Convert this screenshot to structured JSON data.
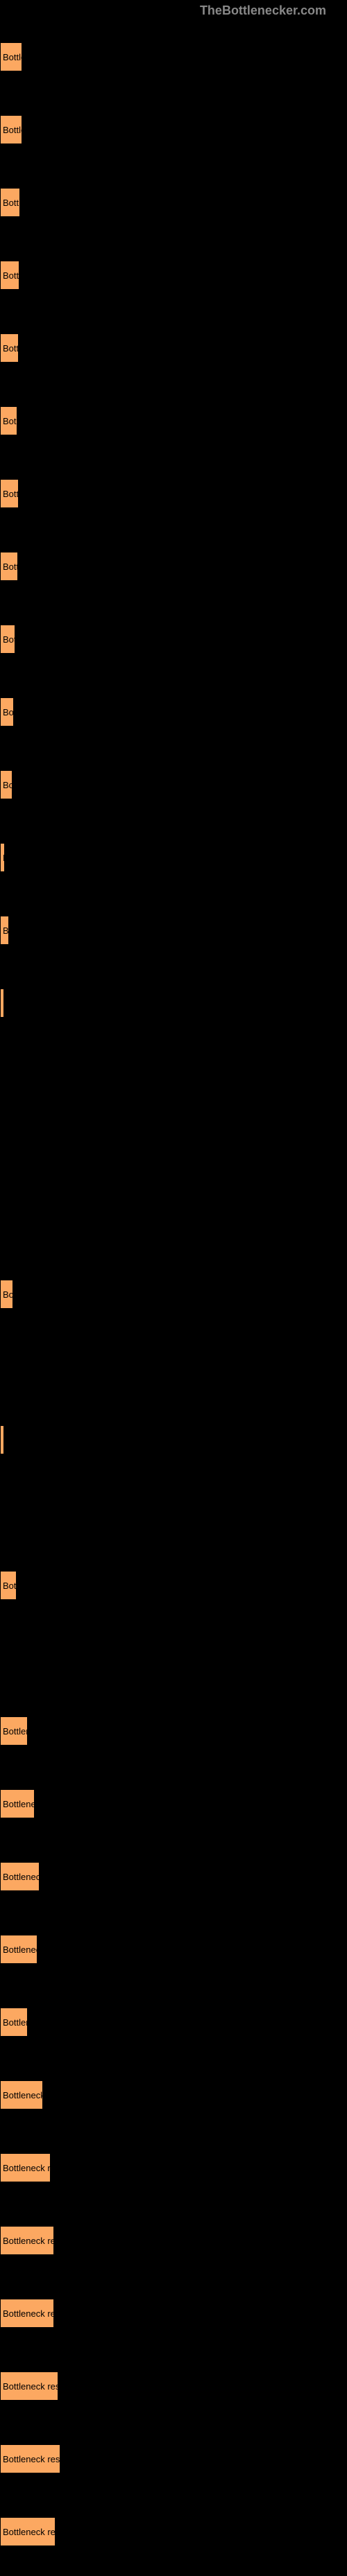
{
  "header": {
    "site_name": "TheBottlenecker.com"
  },
  "chart": {
    "type": "bar",
    "bar_color": "#fca861",
    "background_color": "#000000",
    "text_color": "#000000",
    "header_color": "#888888",
    "bars": [
      {
        "label": "Bottle",
        "width": 32
      },
      {
        "label": "Bottle",
        "width": 32
      },
      {
        "label": "Bott",
        "width": 29
      },
      {
        "label": "Bott",
        "width": 28
      },
      {
        "label": "Bott",
        "width": 27
      },
      {
        "label": "Bot",
        "width": 25
      },
      {
        "label": "Bott",
        "width": 27
      },
      {
        "label": "Bott",
        "width": 26
      },
      {
        "label": "Bot",
        "width": 22
      },
      {
        "label": "Bo",
        "width": 20
      },
      {
        "label": "Bo",
        "width": 18
      },
      {
        "label": "E",
        "width": 7
      },
      {
        "label": "B",
        "width": 13
      },
      {
        "label": "",
        "width": 6
      },
      {
        "label": "",
        "width": 0
      },
      {
        "label": "",
        "width": 0
      },
      {
        "label": "",
        "width": 0
      },
      {
        "label": "Bo",
        "width": 19
      },
      {
        "label": "",
        "width": 0
      },
      {
        "label": "",
        "width": 6
      },
      {
        "label": "",
        "width": 0
      },
      {
        "label": "Bot",
        "width": 24
      },
      {
        "label": "",
        "width": 0
      },
      {
        "label": "Bottlen",
        "width": 40
      },
      {
        "label": "Bottlenec",
        "width": 50
      },
      {
        "label": "Bottleneck",
        "width": 57
      },
      {
        "label": "Bottlenec",
        "width": 54
      },
      {
        "label": "Bottler",
        "width": 40
      },
      {
        "label": "Bottleneck",
        "width": 62
      },
      {
        "label": "Bottleneck re",
        "width": 73
      },
      {
        "label": "Bottleneck re",
        "width": 78
      },
      {
        "label": "Bottleneck res",
        "width": 78
      },
      {
        "label": "Bottleneck res",
        "width": 84
      },
      {
        "label": "Bottleneck res",
        "width": 87
      },
      {
        "label": "Bottleneck re",
        "width": 80
      }
    ]
  }
}
